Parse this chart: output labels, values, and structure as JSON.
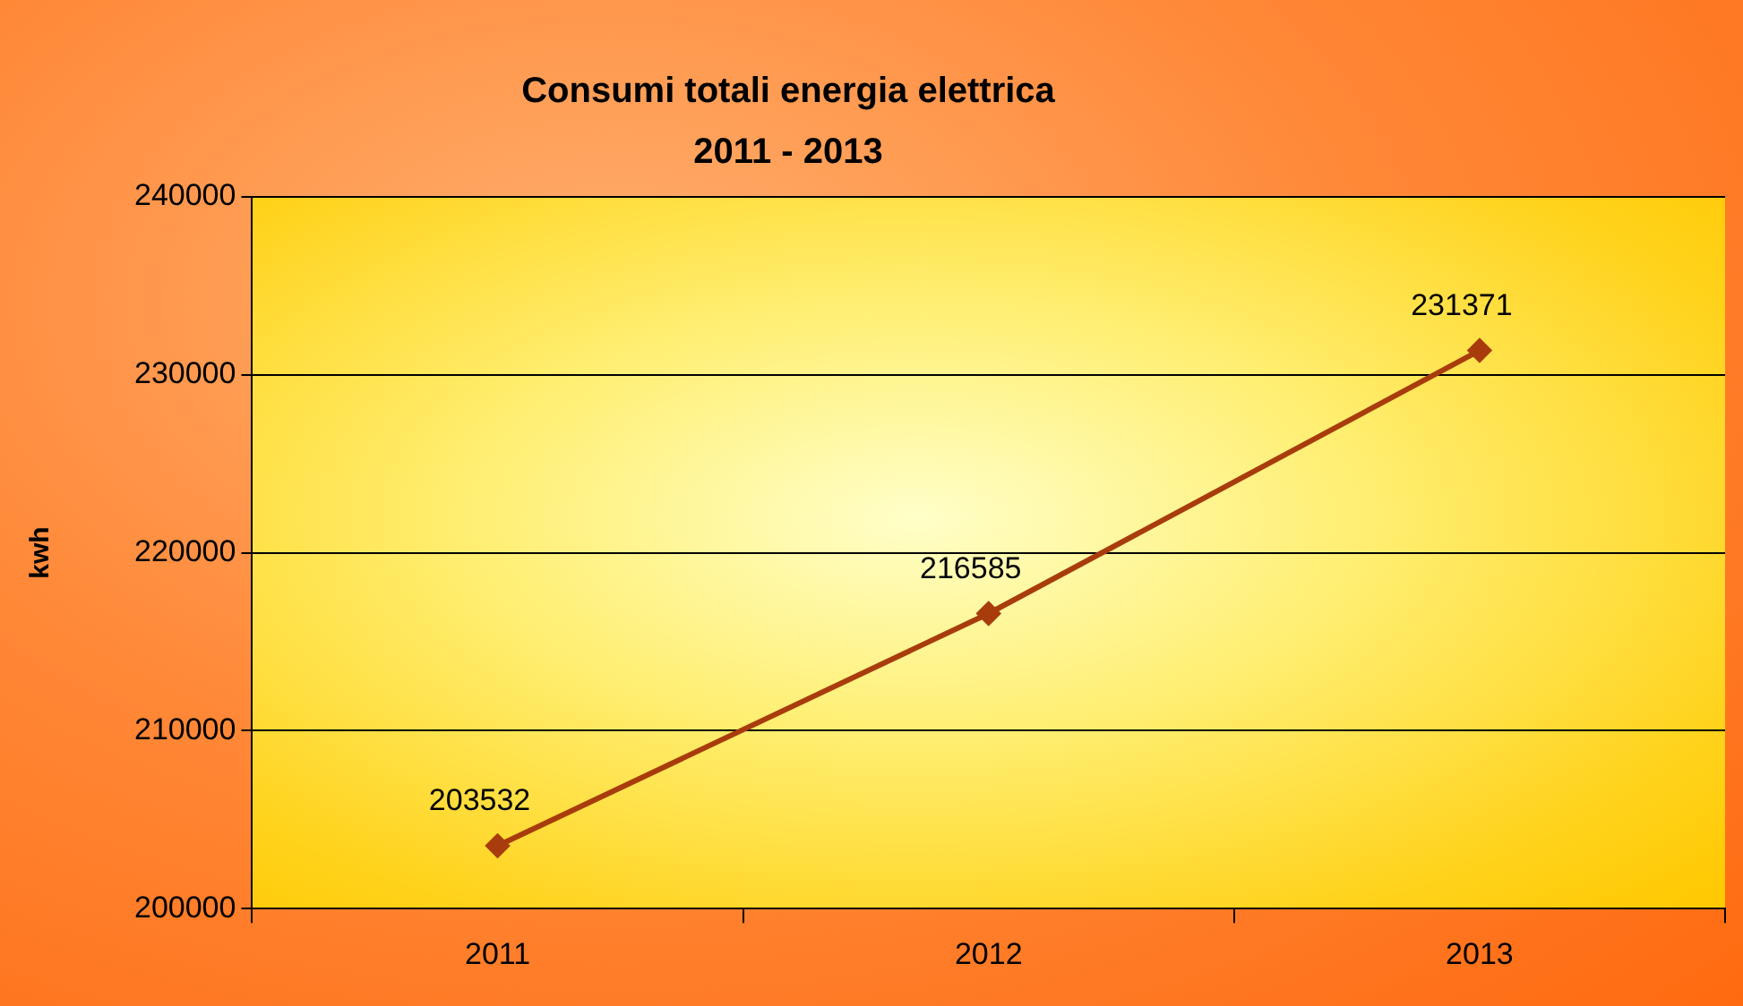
{
  "chart_data": {
    "type": "line",
    "title": "Consumi totali energia elettrica\n2011 - 2013",
    "ylabel": "kwh",
    "categories": [
      "2011",
      "2012",
      "2013"
    ],
    "series": [
      {
        "color": "#a83c0c",
        "values": [
          203532,
          216585,
          231371
        ]
      }
    ],
    "ylim": [
      200000,
      240000
    ],
    "yticks": [
      200000,
      210000,
      220000,
      230000,
      240000
    ],
    "grid": "y",
    "legend": false,
    "marker": "diamond",
    "line_style": "solid",
    "data_labels": true
  }
}
